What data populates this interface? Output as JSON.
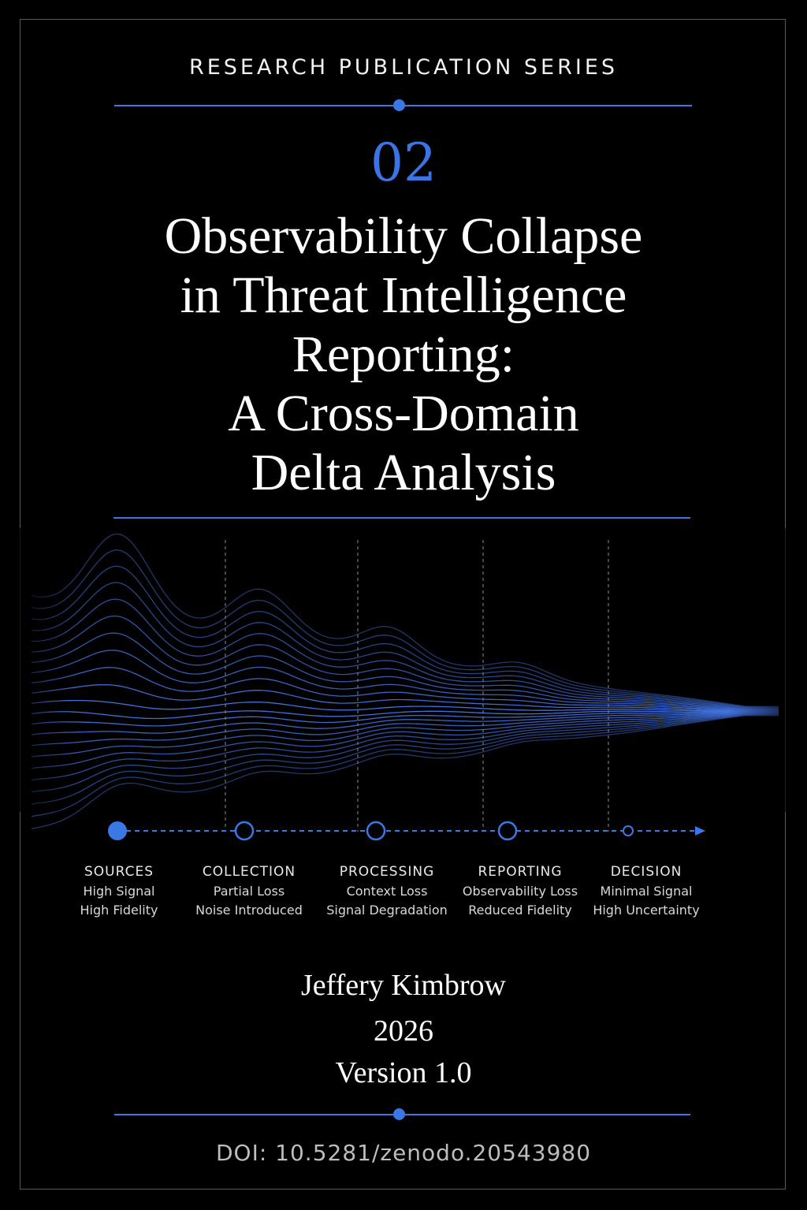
{
  "header": {
    "series": "RESEARCH PUBLICATION SERIES"
  },
  "cover": {
    "number": "02",
    "title_lines": [
      "Observability Collapse",
      "in Threat Intelligence",
      "Reporting:",
      "A Cross-Domain",
      "Delta Analysis"
    ]
  },
  "pipeline": {
    "stages": [
      {
        "name": "SOURCES",
        "line1": "High Signal",
        "line2": "High Fidelity"
      },
      {
        "name": "COLLECTION",
        "line1": "Partial Loss",
        "line2": "Noise Introduced"
      },
      {
        "name": "PROCESSING",
        "line1": "Context Loss",
        "line2": "Signal Degradation"
      },
      {
        "name": "REPORTING",
        "line1": "Observability Loss",
        "line2": "Reduced Fidelity"
      },
      {
        "name": "DECISION",
        "line1": "Minimal Signal",
        "line2": "High Uncertainty"
      }
    ]
  },
  "footer": {
    "author": "Jeffery Kimbrow",
    "year": "2026",
    "version": "Version 1.0",
    "doi": "DOI: 10.5281/zenodo.20543980"
  },
  "colors": {
    "accent": "#3a78e6",
    "background": "#000000",
    "text": "#ffffff"
  }
}
